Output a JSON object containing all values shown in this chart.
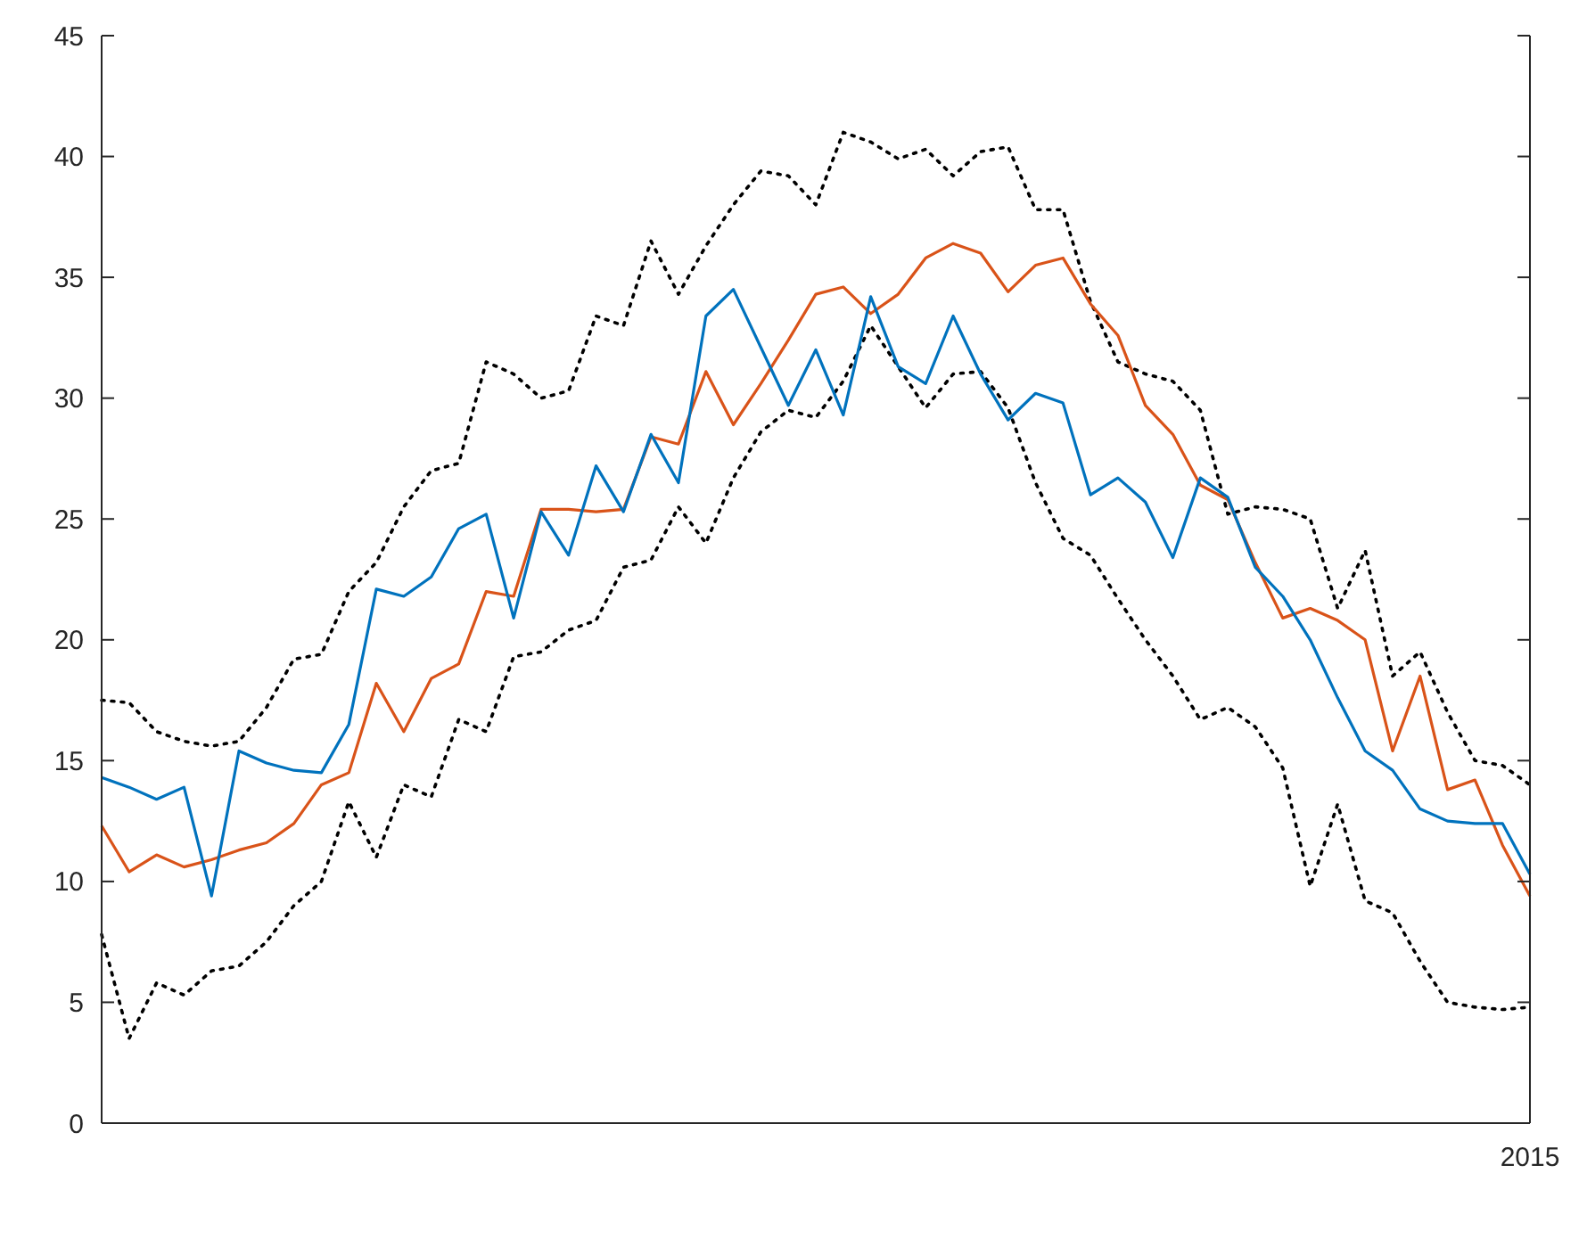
{
  "chart_data": {
    "type": "line",
    "categories": [
      null,
      null,
      null,
      null,
      null,
      null,
      null,
      null,
      null,
      null,
      null,
      null,
      null,
      null,
      null,
      null,
      null,
      null,
      null,
      null,
      null,
      null,
      null,
      null,
      null,
      null,
      null,
      null,
      null,
      null,
      null,
      null,
      null,
      null,
      null,
      null,
      null,
      null,
      null,
      null,
      null,
      null,
      null,
      null,
      null,
      null,
      null,
      null,
      null,
      null,
      null,
      null,
      "2015"
    ],
    "ylim": [
      0,
      45
    ],
    "yticks": [
      0,
      5,
      10,
      15,
      20,
      25,
      30,
      35,
      40,
      45
    ],
    "series": [
      {
        "color": "#000000",
        "line_style": "dotted",
        "values": [
          17.5,
          17.4,
          16.2,
          15.8,
          15.6,
          15.8,
          17.2,
          19.2,
          19.4,
          22.0,
          23.2,
          25.5,
          27.0,
          27.3,
          31.5,
          31.0,
          30.0,
          30.3,
          33.4,
          33.0,
          36.5,
          34.3,
          36.3,
          38.0,
          39.4,
          39.2,
          38.0,
          41.0,
          40.6,
          39.9,
          40.3,
          39.2,
          40.2,
          40.4,
          37.8,
          37.8,
          34.0,
          31.5,
          31.0,
          30.7,
          29.5,
          25.2,
          25.5,
          25.4,
          25.0,
          21.3,
          23.7,
          18.5,
          19.5,
          17.0,
          15.0,
          14.8,
          14.0
        ]
      },
      {
        "color": "#000000",
        "line_style": "dotted",
        "values": [
          7.8,
          3.5,
          5.8,
          5.3,
          6.3,
          6.5,
          7.5,
          9.0,
          10.0,
          13.3,
          11.0,
          14.0,
          13.5,
          16.7,
          16.2,
          19.3,
          19.5,
          20.4,
          20.8,
          23.0,
          23.3,
          25.5,
          24.0,
          26.7,
          28.6,
          29.5,
          29.2,
          30.7,
          33.0,
          31.3,
          29.6,
          31.0,
          31.1,
          29.6,
          26.5,
          24.2,
          23.5,
          21.7,
          20.0,
          18.5,
          16.7,
          17.2,
          16.4,
          14.7,
          9.8,
          13.2,
          9.2,
          8.7,
          6.7,
          5.0,
          4.8,
          4.7,
          4.8
        ]
      },
      {
        "color": "#d95319",
        "line_style": "solid",
        "values": [
          12.3,
          10.4,
          11.1,
          10.6,
          10.9,
          11.3,
          11.6,
          12.4,
          14.0,
          14.5,
          18.2,
          16.2,
          18.4,
          19.0,
          22.0,
          21.8,
          25.4,
          25.4,
          25.3,
          25.4,
          28.4,
          28.1,
          31.1,
          28.9,
          30.6,
          32.4,
          34.3,
          34.6,
          33.5,
          34.3,
          35.8,
          36.4,
          36.0,
          34.4,
          35.5,
          35.8,
          33.9,
          32.6,
          29.7,
          28.5,
          26.4,
          25.8,
          23.2,
          20.9,
          21.3,
          20.8,
          20.0,
          15.4,
          18.5,
          13.8,
          14.2,
          11.5,
          9.4
        ]
      },
      {
        "color": "#0072bd",
        "line_style": "solid",
        "values": [
          14.3,
          13.9,
          13.4,
          13.9,
          9.4,
          15.4,
          14.9,
          14.6,
          14.5,
          16.5,
          22.1,
          21.8,
          22.6,
          24.6,
          25.2,
          20.9,
          25.3,
          23.5,
          27.2,
          25.3,
          28.5,
          26.5,
          33.4,
          34.5,
          32.1,
          29.7,
          32.0,
          29.3,
          34.2,
          31.3,
          30.6,
          33.4,
          31.0,
          29.1,
          30.2,
          29.8,
          26.0,
          26.7,
          25.7,
          23.4,
          26.7,
          25.9,
          23.0,
          21.8,
          20.0,
          17.6,
          15.4,
          14.6,
          13.0,
          12.5,
          12.4,
          12.4,
          10.3
        ]
      }
    ]
  }
}
